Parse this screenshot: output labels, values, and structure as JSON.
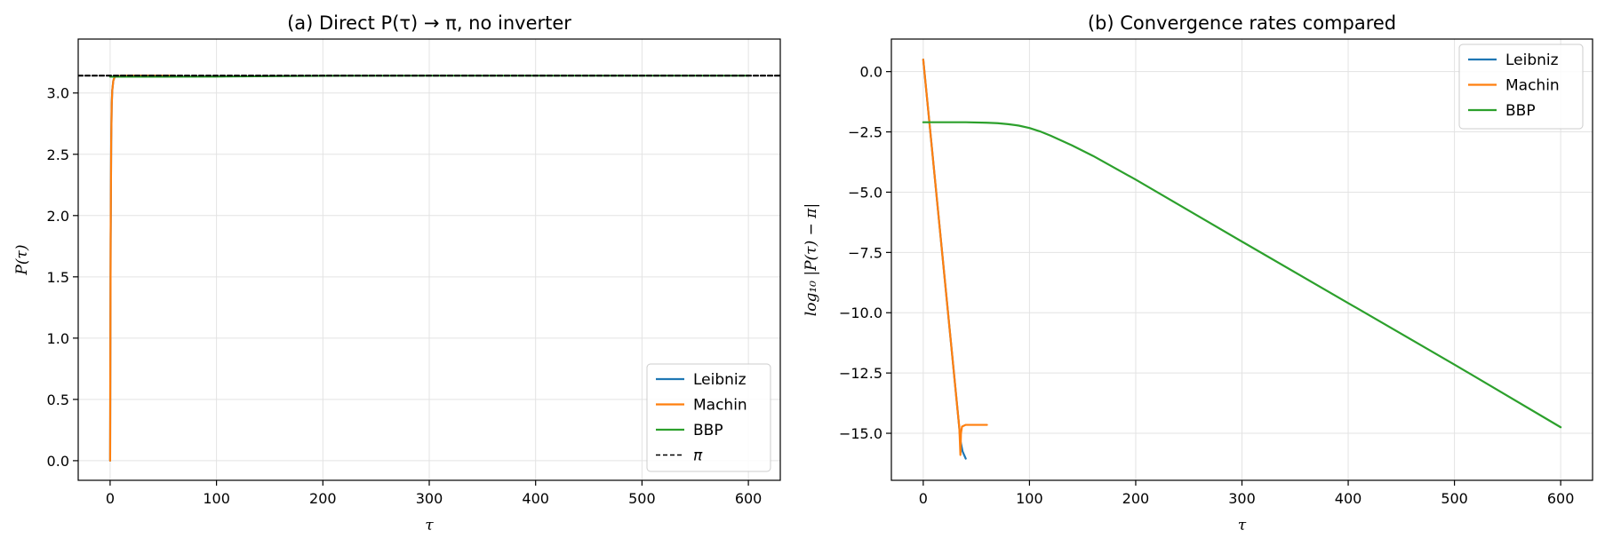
{
  "chart_data": [
    {
      "type": "line",
      "title": "(a) Direct P(τ) → π, no inverter",
      "xlabel": "τ",
      "ylabel": "P(τ)",
      "xlim": [
        -30,
        630
      ],
      "ylim": [
        -0.16,
        3.44
      ],
      "xticks": [
        0,
        100,
        200,
        300,
        400,
        500,
        600
      ],
      "yticks": [
        0.0,
        0.5,
        1.0,
        1.5,
        2.0,
        2.5,
        3.0
      ],
      "xtick_labels": [
        "0",
        "100",
        "200",
        "300",
        "400",
        "500",
        "600"
      ],
      "ytick_labels": [
        "0.0",
        "0.5",
        "1.0",
        "1.5",
        "2.0",
        "2.5",
        "3.0"
      ],
      "grid": true,
      "legend_position": "lower-right",
      "series": [
        {
          "name": "Leibniz",
          "color": "#1f77b4",
          "x": [
            0,
            0.2,
            0.5,
            1,
            1.5,
            2,
            3,
            4,
            5,
            7,
            10,
            20,
            40
          ],
          "y": [
            0.0,
            0.8,
            1.8,
            2.6,
            2.9,
            3.02,
            3.1,
            3.125,
            3.133,
            3.138,
            3.1405,
            3.1413,
            3.14159
          ]
        },
        {
          "name": "Machin",
          "color": "#ff7f0e",
          "x": [
            0,
            0.2,
            0.5,
            1,
            1.5,
            2,
            3,
            4,
            5,
            7,
            10,
            20,
            40,
            60
          ],
          "y": [
            0.0,
            0.8,
            1.8,
            2.6,
            2.9,
            3.02,
            3.1,
            3.125,
            3.133,
            3.138,
            3.1405,
            3.1413,
            3.14159,
            3.14159
          ]
        },
        {
          "name": "BBP",
          "color": "#2ca02c",
          "x": [
            0,
            50,
            100,
            150,
            200,
            300,
            400,
            500,
            600
          ],
          "y": [
            3.133,
            3.133,
            3.134,
            3.137,
            3.1405,
            3.14159,
            3.14159,
            3.14159,
            3.14159
          ]
        },
        {
          "name": "π",
          "color": "#000000",
          "dashed": true,
          "x": [
            -30,
            630
          ],
          "y": [
            3.14159,
            3.14159
          ]
        }
      ]
    },
    {
      "type": "line",
      "title": "(b) Convergence rates compared",
      "xlabel": "τ",
      "ylabel": "log₁₀ |P(τ) − π|",
      "xlim": [
        -30,
        630
      ],
      "ylim": [
        -16.95,
        1.35
      ],
      "xticks": [
        0,
        100,
        200,
        300,
        400,
        500,
        600
      ],
      "yticks": [
        0.0,
        -2.5,
        -5.0,
        -7.5,
        -10.0,
        -12.5,
        -15.0
      ],
      "xtick_labels": [
        "0",
        "100",
        "200",
        "300",
        "400",
        "500",
        "600"
      ],
      "ytick_labels": [
        "0.0",
        "−2.5",
        "−5.0",
        "−7.5",
        "−10.0",
        "−12.5",
        "−15.0"
      ],
      "grid": true,
      "legend_position": "top-right",
      "series": [
        {
          "name": "Leibniz",
          "color": "#1f77b4",
          "x": [
            0,
            34,
            35,
            37,
            40
          ],
          "y": [
            0.5,
            -14.8,
            -15.3,
            -15.75,
            -16.05
          ]
        },
        {
          "name": "Machin",
          "color": "#ff7f0e",
          "x": [
            0,
            34,
            35,
            35.5,
            36.5,
            40,
            60
          ],
          "y": [
            0.5,
            -14.8,
            -15.9,
            -15.0,
            -14.72,
            -14.65,
            -14.65
          ]
        },
        {
          "name": "BBP",
          "color": "#2ca02c",
          "x": [
            0,
            20,
            40,
            60,
            70,
            80,
            90,
            100,
            110,
            120,
            140,
            160,
            200,
            300,
            400,
            500,
            600
          ],
          "y": [
            -2.1,
            -2.1,
            -2.1,
            -2.12,
            -2.14,
            -2.18,
            -2.24,
            -2.34,
            -2.48,
            -2.66,
            -3.06,
            -3.5,
            -4.48,
            -7.05,
            -9.6,
            -12.15,
            -14.75
          ]
        }
      ]
    }
  ]
}
